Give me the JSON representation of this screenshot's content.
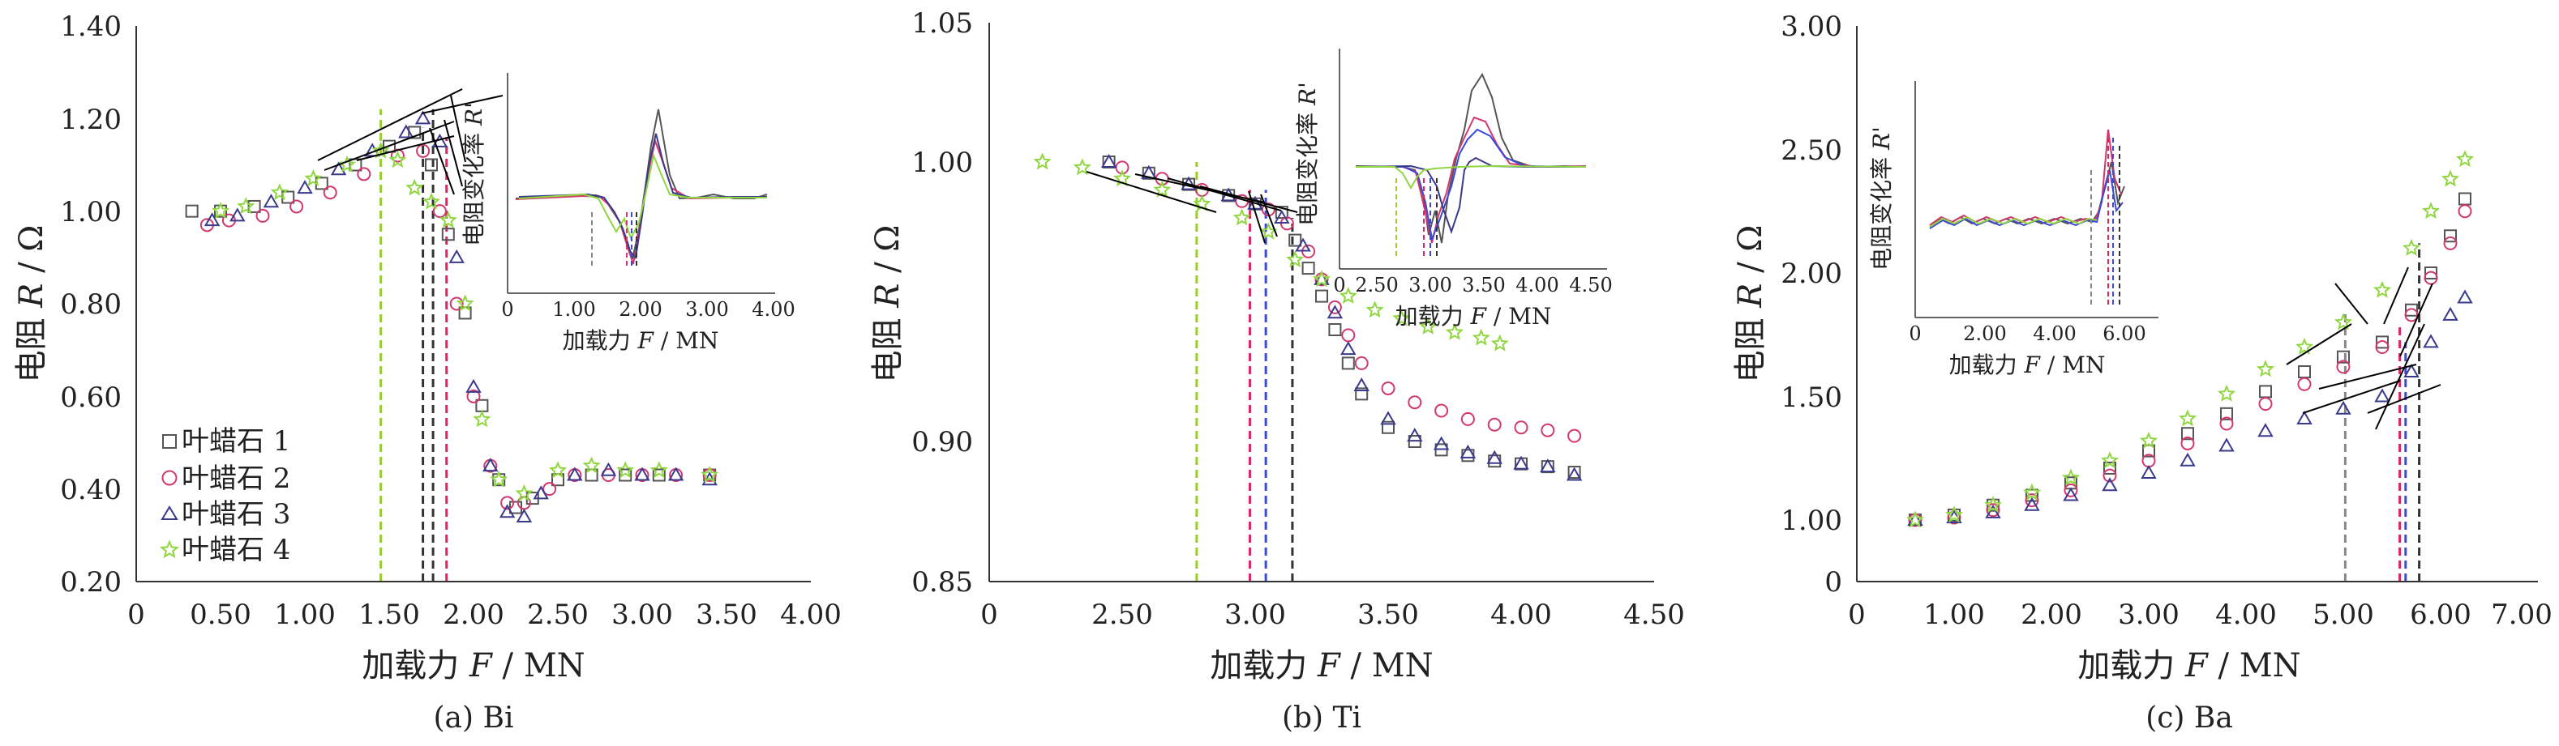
{
  "colors": {
    "series1": "#555555",
    "series2": "#d2386e",
    "series3": "#3a3a8c",
    "series4": "#8fd63f",
    "vline_green": "#9acd32",
    "vline_gray": "#888888",
    "vline_black": "#333333",
    "vline_red": "#e0245e",
    "vline_blue": "#3b49d6",
    "fit_line": "#000000"
  },
  "legend": {
    "entries": [
      {
        "label": "叶蜡石 1",
        "marker": "square",
        "series": "s1"
      },
      {
        "label": "叶蜡石 2",
        "marker": "circle",
        "series": "s2"
      },
      {
        "label": "叶蜡石 3",
        "marker": "triangle",
        "series": "s3"
      },
      {
        "label": "叶蜡石 4",
        "marker": "star",
        "series": "s4"
      }
    ]
  },
  "chart_data": [
    {
      "type": "scatter",
      "caption": "(a) Bi",
      "xlabel_prefix": "加载力 ",
      "xlabel_var": "F",
      "xlabel_unit": " / MN",
      "ylabel_prefix": "电阻 ",
      "ylabel_var": "R",
      "ylabel_unit": " / Ω",
      "xlim": [
        0,
        4.0
      ],
      "ylim": [
        0.2,
        1.4
      ],
      "xticks": [
        "0",
        "0.50",
        "1.00",
        "1.50",
        "2.00",
        "2.50",
        "3.00",
        "3.50",
        "4.00"
      ],
      "yticks": [
        "0.20",
        "0.40",
        "0.60",
        "0.80",
        "1.00",
        "1.20",
        "1.40"
      ],
      "series": [
        {
          "name": "叶蜡石 1",
          "marker": "square",
          "color": "#555555",
          "x": [
            0.33,
            0.5,
            0.7,
            0.9,
            1.1,
            1.3,
            1.5,
            1.65,
            1.75,
            1.85,
            1.95,
            2.05,
            2.15,
            2.25,
            2.35,
            2.5,
            2.7,
            2.9,
            3.1,
            3.4
          ],
          "y": [
            1.0,
            1.0,
            1.01,
            1.03,
            1.06,
            1.1,
            1.14,
            1.17,
            1.1,
            0.95,
            0.78,
            0.58,
            0.42,
            0.36,
            0.38,
            0.42,
            0.43,
            0.43,
            0.43,
            0.43
          ]
        },
        {
          "name": "叶蜡石 2",
          "marker": "circle",
          "color": "#d2386e",
          "x": [
            0.42,
            0.55,
            0.75,
            0.95,
            1.15,
            1.35,
            1.55,
            1.7,
            1.8,
            1.9,
            2.0,
            2.1,
            2.2,
            2.3,
            2.45,
            2.6,
            2.8,
            3.0,
            3.2,
            3.4
          ],
          "y": [
            0.97,
            0.98,
            0.99,
            1.01,
            1.04,
            1.08,
            1.12,
            1.13,
            1.0,
            0.8,
            0.6,
            0.45,
            0.37,
            0.37,
            0.4,
            0.43,
            0.43,
            0.43,
            0.43,
            0.43
          ]
        },
        {
          "name": "叶蜡石 3",
          "marker": "triangle",
          "color": "#3a3a8c",
          "x": [
            0.45,
            0.6,
            0.8,
            1.0,
            1.2,
            1.4,
            1.6,
            1.7,
            1.8,
            1.9,
            2.0,
            2.1,
            2.2,
            2.3,
            2.4,
            2.6,
            2.8,
            3.0,
            3.2,
            3.4
          ],
          "y": [
            0.98,
            0.99,
            1.02,
            1.05,
            1.09,
            1.13,
            1.17,
            1.2,
            1.15,
            0.9,
            0.62,
            0.45,
            0.35,
            0.34,
            0.39,
            0.43,
            0.44,
            0.43,
            0.43,
            0.42
          ]
        },
        {
          "name": "叶蜡石 4",
          "marker": "star",
          "color": "#8fd63f",
          "x": [
            0.5,
            0.65,
            0.85,
            1.05,
            1.25,
            1.45,
            1.55,
            1.65,
            1.75,
            1.85,
            1.95,
            2.05,
            2.15,
            2.3,
            2.5,
            2.7,
            2.9,
            3.1,
            3.4
          ],
          "y": [
            1.0,
            1.01,
            1.04,
            1.07,
            1.1,
            1.13,
            1.11,
            1.05,
            1.02,
            0.98,
            0.8,
            0.55,
            0.42,
            0.39,
            0.44,
            0.45,
            0.44,
            0.44,
            0.43
          ]
        }
      ],
      "vlines": [
        {
          "x": 1.45,
          "ymax": 1.22,
          "color": "#9acd32"
        },
        {
          "x": 1.7,
          "ymax": 1.18,
          "color": "#333333"
        },
        {
          "x": 1.76,
          "ymax": 1.22,
          "color": "#333333"
        },
        {
          "x": 1.84,
          "ymax": 1.16,
          "color": "#e0245e"
        }
      ],
      "inset": {
        "ylabel_prefix": "电阻变化率 ",
        "ylabel_var": "R'",
        "xlabel_prefix": "加载力 ",
        "xlabel_var": "F",
        "xlabel_unit": " / MN",
        "xlim": [
          0,
          4.0
        ],
        "xticks": [
          "0",
          "1.00",
          "2.00",
          "3.00",
          "4.00"
        ]
      }
    },
    {
      "type": "scatter",
      "caption": "(b) Ti",
      "xlabel_prefix": "加载力 ",
      "xlabel_var": "F",
      "xlabel_unit": " / MN",
      "ylabel_prefix": "电阻 ",
      "ylabel_var": "R",
      "ylabel_unit": " / Ω",
      "xlim": [
        2.0,
        4.5
      ],
      "ylim": [
        0.85,
        1.05
      ],
      "xticks": [
        "0",
        "2.50",
        "3.00",
        "3.50",
        "4.00",
        "4.50"
      ],
      "yticks": [
        "0.85",
        "0.90",
        "1.00",
        "1.05"
      ],
      "series": [
        {
          "name": "叶蜡石 1",
          "marker": "square",
          "color": "#555555",
          "x": [
            2.45,
            2.6,
            2.75,
            2.9,
            3.0,
            3.1,
            3.15,
            3.2,
            3.25,
            3.3,
            3.35,
            3.4,
            3.5,
            3.6,
            3.7,
            3.8,
            3.9,
            4.0,
            4.1,
            4.2
          ],
          "y": [
            1.0,
            0.996,
            0.992,
            0.988,
            0.985,
            0.982,
            0.972,
            0.962,
            0.952,
            0.94,
            0.928,
            0.917,
            0.905,
            0.9,
            0.897,
            0.895,
            0.893,
            0.892,
            0.891,
            0.889
          ]
        },
        {
          "name": "叶蜡石 2",
          "marker": "circle",
          "color": "#d2386e",
          "x": [
            2.5,
            2.65,
            2.8,
            2.95,
            3.05,
            3.12,
            3.2,
            3.25,
            3.3,
            3.35,
            3.4,
            3.5,
            3.6,
            3.7,
            3.8,
            3.9,
            4.0,
            4.1,
            4.2
          ],
          "y": [
            0.998,
            0.994,
            0.99,
            0.986,
            0.983,
            0.978,
            0.968,
            0.958,
            0.948,
            0.938,
            0.928,
            0.919,
            0.914,
            0.911,
            0.908,
            0.906,
            0.905,
            0.904,
            0.902
          ]
        },
        {
          "name": "叶蜡石 3",
          "marker": "triangle",
          "color": "#3a3a8c",
          "x": [
            2.45,
            2.6,
            2.75,
            2.9,
            3.0,
            3.1,
            3.18,
            3.25,
            3.3,
            3.35,
            3.4,
            3.5,
            3.6,
            3.7,
            3.8,
            3.9,
            4.0,
            4.1,
            4.2
          ],
          "y": [
            1.0,
            0.996,
            0.992,
            0.988,
            0.985,
            0.98,
            0.97,
            0.958,
            0.946,
            0.933,
            0.92,
            0.908,
            0.902,
            0.899,
            0.896,
            0.894,
            0.892,
            0.891,
            0.888
          ]
        },
        {
          "name": "叶蜡石 4",
          "marker": "star",
          "color": "#8fd63f",
          "x": [
            2.2,
            2.35,
            2.5,
            2.65,
            2.8,
            2.95,
            3.05,
            3.15,
            3.25,
            3.35,
            3.45,
            3.55,
            3.65,
            3.75,
            3.85,
            3.92
          ],
          "y": [
            1.0,
            0.998,
            0.994,
            0.99,
            0.985,
            0.98,
            0.975,
            0.965,
            0.958,
            0.952,
            0.947,
            0.944,
            0.941,
            0.939,
            0.937,
            0.935
          ]
        }
      ],
      "vlines": [
        {
          "x": 2.78,
          "ymax": 1.0,
          "color": "#9acd32"
        },
        {
          "x": 2.98,
          "ymax": 0.99,
          "color": "#e0245e"
        },
        {
          "x": 3.04,
          "ymax": 0.99,
          "color": "#3b49d6"
        },
        {
          "x": 3.14,
          "ymax": 0.98,
          "color": "#333333"
        }
      ],
      "inset": {
        "ylabel_prefix": "电阻变化率 ",
        "ylabel_var": "R'",
        "xlabel_prefix": "加载力 ",
        "xlabel_var": "F",
        "xlabel_unit": " / MN",
        "xlim": [
          2.0,
          4.5
        ],
        "xticks": [
          "0",
          "2.50",
          "3.00",
          "3.50",
          "4.00",
          "4.50"
        ]
      }
    },
    {
      "type": "scatter",
      "caption": "(c) Ba",
      "xlabel_prefix": "加载力 ",
      "xlabel_var": "F",
      "xlabel_unit": " / MN",
      "ylabel_prefix": "电阻 ",
      "ylabel_var": "R",
      "ylabel_unit": " / Ω",
      "xlim": [
        0,
        7.0
      ],
      "ylim": [
        0,
        3.0
      ],
      "xticks": [
        "0",
        "1.00",
        "2.00",
        "3.00",
        "4.00",
        "5.00",
        "6.00",
        "7.00"
      ],
      "yticks": [
        "0",
        "1.00",
        "1.50",
        "2.00",
        "2.50",
        "3.00"
      ],
      "series": [
        {
          "name": "叶蜡石 1",
          "marker": "square",
          "color": "#555555",
          "x": [
            0.6,
            1.0,
            1.4,
            1.8,
            2.2,
            2.6,
            3.0,
            3.4,
            3.8,
            4.2,
            4.6,
            5.0,
            5.4,
            5.7,
            5.9,
            6.1,
            6.25
          ],
          "y": [
            1.0,
            1.02,
            1.06,
            1.1,
            1.15,
            1.21,
            1.28,
            1.35,
            1.43,
            1.52,
            1.6,
            1.66,
            1.72,
            1.85,
            2.0,
            2.15,
            2.3
          ]
        },
        {
          "name": "叶蜡石 2",
          "marker": "circle",
          "color": "#d2386e",
          "x": [
            0.6,
            1.0,
            1.4,
            1.8,
            2.2,
            2.6,
            3.0,
            3.4,
            3.8,
            4.2,
            4.6,
            5.0,
            5.4,
            5.7,
            5.9,
            6.1,
            6.25
          ],
          "y": [
            1.0,
            1.01,
            1.04,
            1.08,
            1.12,
            1.18,
            1.24,
            1.31,
            1.39,
            1.47,
            1.55,
            1.62,
            1.7,
            1.83,
            1.98,
            2.12,
            2.25
          ]
        },
        {
          "name": "叶蜡石 3",
          "marker": "triangle",
          "color": "#3a3a8c",
          "x": [
            0.6,
            1.0,
            1.4,
            1.8,
            2.2,
            2.6,
            3.0,
            3.4,
            3.8,
            4.2,
            4.6,
            5.0,
            5.4,
            5.7,
            5.9,
            6.1,
            6.25
          ],
          "y": [
            1.0,
            1.01,
            1.03,
            1.06,
            1.1,
            1.14,
            1.19,
            1.24,
            1.3,
            1.36,
            1.41,
            1.45,
            1.5,
            1.6,
            1.72,
            1.83,
            1.9
          ]
        },
        {
          "name": "叶蜡石 4",
          "marker": "star",
          "color": "#8fd63f",
          "x": [
            0.6,
            1.0,
            1.4,
            1.8,
            2.2,
            2.6,
            3.0,
            3.4,
            3.8,
            4.2,
            4.6,
            5.0,
            5.4,
            5.7,
            5.9,
            6.1,
            6.25
          ],
          "y": [
            1.0,
            1.02,
            1.06,
            1.11,
            1.17,
            1.24,
            1.32,
            1.41,
            1.51,
            1.61,
            1.7,
            1.8,
            1.93,
            2.1,
            2.25,
            2.38,
            2.46
          ]
        }
      ],
      "vlines": [
        {
          "x": 5.02,
          "ymax": 1.85,
          "color": "#888888"
        },
        {
          "x": 5.58,
          "ymax": 1.78,
          "color": "#e0245e"
        },
        {
          "x": 5.64,
          "ymax": 1.72,
          "color": "#3b49d6"
        },
        {
          "x": 5.78,
          "ymax": 2.12,
          "color": "#333333"
        }
      ],
      "inset": {
        "ylabel_prefix": "电阻变化率 ",
        "ylabel_var": "R'",
        "xlabel_prefix": "加载力 ",
        "xlabel_var": "F",
        "xlabel_unit": " / MN",
        "xlim": [
          0,
          7.0
        ],
        "xticks": [
          "0",
          "2.00",
          "4.00",
          "6.00"
        ]
      }
    }
  ]
}
